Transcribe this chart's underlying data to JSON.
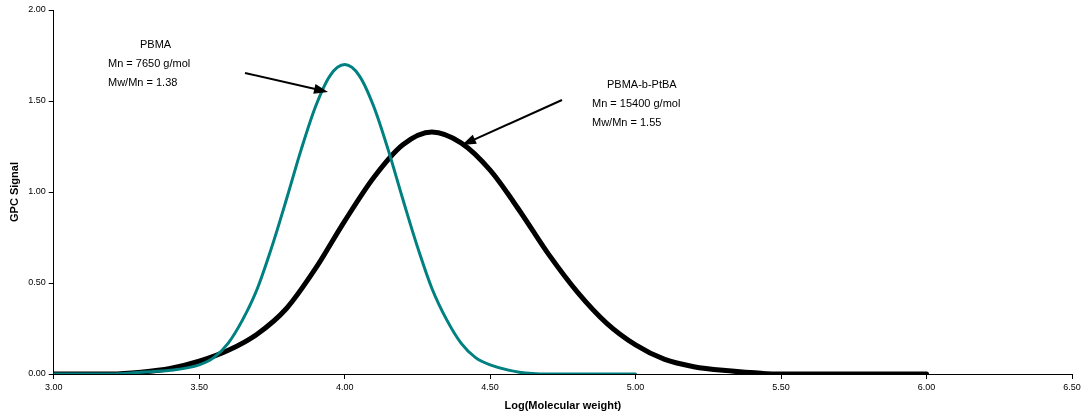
{
  "chart_data": {
    "type": "line",
    "xlabel": "Log(Molecular weight)",
    "ylabel": "GPC Signal",
    "xlim": [
      3,
      6.5
    ],
    "ylim": [
      0,
      2
    ],
    "xticks": [
      {
        "value": 3,
        "label": "3.00"
      },
      {
        "value": 3.5,
        "label": "3.50"
      },
      {
        "value": 4,
        "label": "4.00"
      },
      {
        "value": 4.5,
        "label": "4.50"
      },
      {
        "value": 5,
        "label": "5.00"
      },
      {
        "value": 5.5,
        "label": "5.50"
      },
      {
        "value": 6,
        "label": "6.00"
      },
      {
        "value": 6.5,
        "label": "6.50"
      }
    ],
    "yticks": [
      {
        "value": 0,
        "label": "0.00"
      },
      {
        "value": 0.5,
        "label": "0.50"
      },
      {
        "value": 1,
        "label": "1.00"
      },
      {
        "value": 1.5,
        "label": "1.50"
      },
      {
        "value": 2,
        "label": "2.00"
      }
    ],
    "grid": false,
    "legend": false,
    "marker": "none",
    "line_style": "solid",
    "series": [
      {
        "color": "#008080",
        "x": [
          3,
          3.2,
          3.3,
          3.4,
          3.5,
          3.55,
          3.6,
          3.65,
          3.7,
          3.75,
          3.8,
          3.85,
          3.9,
          3.95,
          4,
          4.05,
          4.1,
          4.15,
          4.2,
          4.25,
          4.3,
          4.35,
          4.4,
          4.45,
          4.5,
          4.6,
          4.7,
          4.8,
          5
        ],
        "values": [
          0,
          0,
          0.01,
          0.02,
          0.05,
          0.09,
          0.17,
          0.3,
          0.47,
          0.7,
          0.96,
          1.23,
          1.47,
          1.64,
          1.7,
          1.64,
          1.47,
          1.23,
          0.96,
          0.7,
          0.47,
          0.3,
          0.17,
          0.09,
          0.05,
          0.01,
          0,
          0,
          0
        ]
      },
      {
        "color": "#000000",
        "x": [
          3,
          3.1,
          3.2,
          3.3,
          3.4,
          3.5,
          3.6,
          3.7,
          3.8,
          3.9,
          4,
          4.1,
          4.2,
          4.3,
          4.4,
          4.5,
          4.6,
          4.7,
          4.8,
          4.9,
          5,
          5.1,
          5.2,
          5.3,
          5.5,
          6
        ],
        "values": [
          0,
          0,
          0,
          0.01,
          0.03,
          0.07,
          0.13,
          0.22,
          0.36,
          0.58,
          0.84,
          1.08,
          1.26,
          1.33,
          1.27,
          1.12,
          0.9,
          0.66,
          0.45,
          0.28,
          0.16,
          0.08,
          0.04,
          0.02,
          0,
          0
        ]
      }
    ],
    "annotations": [
      "PBMA\nMn = 7650 g/mol\nMw/Mn = 1.38",
      "PBMA-b-PtBA\nMn = 15400 g/mol\nMw/Mn = 1.55"
    ]
  }
}
